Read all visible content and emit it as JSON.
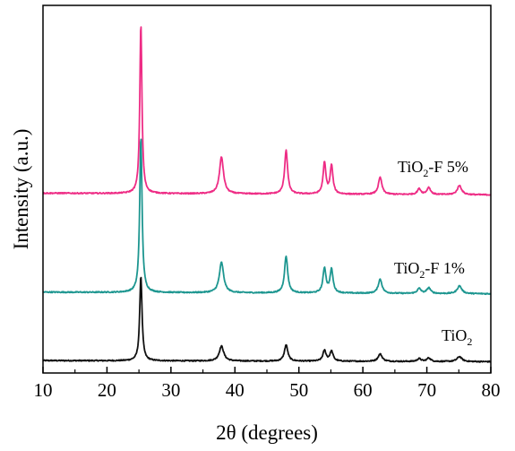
{
  "chart_data": {
    "type": "line",
    "title": "",
    "xlabel": "2θ (degrees)",
    "ylabel": "Intensity (a.u.)",
    "xlim": [
      10,
      80
    ],
    "xticks": [
      10,
      20,
      30,
      40,
      50,
      60,
      70,
      80
    ],
    "y_ticks_shown": false,
    "grid": false,
    "legend": "inline labels near right end of each curve",
    "series": [
      {
        "label_main": "TiO",
        "label_sub": "2",
        "label_tail": "",
        "color": "#111111",
        "baseline": 0.0,
        "drift": 0.008,
        "noise": 0.004,
        "peaks": [
          {
            "x": 25.3,
            "height": 0.6,
            "width": 0.22
          },
          {
            "x": 37.9,
            "height": 0.105,
            "width": 0.42
          },
          {
            "x": 48.0,
            "height": 0.115,
            "width": 0.32
          },
          {
            "x": 54.0,
            "height": 0.075,
            "width": 0.3
          },
          {
            "x": 55.1,
            "height": 0.07,
            "width": 0.3
          },
          {
            "x": 62.7,
            "height": 0.052,
            "width": 0.38
          },
          {
            "x": 68.8,
            "height": 0.02,
            "width": 0.35
          },
          {
            "x": 70.3,
            "height": 0.025,
            "width": 0.35
          },
          {
            "x": 75.1,
            "height": 0.035,
            "width": 0.45
          }
        ]
      },
      {
        "label_main": "TiO",
        "label_sub": "2",
        "label_tail": "-F 1%",
        "color": "#1d9690",
        "baseline": 0.48,
        "drift": 0.012,
        "noise": 0.004,
        "peaks": [
          {
            "x": 25.3,
            "height": 1.1,
            "width": 0.22
          },
          {
            "x": 37.9,
            "height": 0.215,
            "width": 0.4
          },
          {
            "x": 48.0,
            "height": 0.26,
            "width": 0.3
          },
          {
            "x": 54.0,
            "height": 0.175,
            "width": 0.28
          },
          {
            "x": 55.1,
            "height": 0.165,
            "width": 0.28
          },
          {
            "x": 62.7,
            "height": 0.1,
            "width": 0.35
          },
          {
            "x": 68.8,
            "height": 0.035,
            "width": 0.35
          },
          {
            "x": 70.3,
            "height": 0.04,
            "width": 0.35
          },
          {
            "x": 75.1,
            "height": 0.055,
            "width": 0.42
          }
        ]
      },
      {
        "label_main": "TiO",
        "label_sub": "2",
        "label_tail": "-F 5%",
        "color": "#ee2c85",
        "baseline": 1.18,
        "drift": 0.012,
        "noise": 0.004,
        "peaks": [
          {
            "x": 25.3,
            "height": 1.2,
            "width": 0.2
          },
          {
            "x": 37.9,
            "height": 0.26,
            "width": 0.38
          },
          {
            "x": 48.0,
            "height": 0.31,
            "width": 0.28
          },
          {
            "x": 54.0,
            "height": 0.22,
            "width": 0.26
          },
          {
            "x": 55.1,
            "height": 0.2,
            "width": 0.26
          },
          {
            "x": 62.7,
            "height": 0.12,
            "width": 0.33
          },
          {
            "x": 68.8,
            "height": 0.04,
            "width": 0.33
          },
          {
            "x": 70.3,
            "height": 0.05,
            "width": 0.33
          },
          {
            "x": 75.1,
            "height": 0.065,
            "width": 0.4
          }
        ]
      }
    ]
  }
}
